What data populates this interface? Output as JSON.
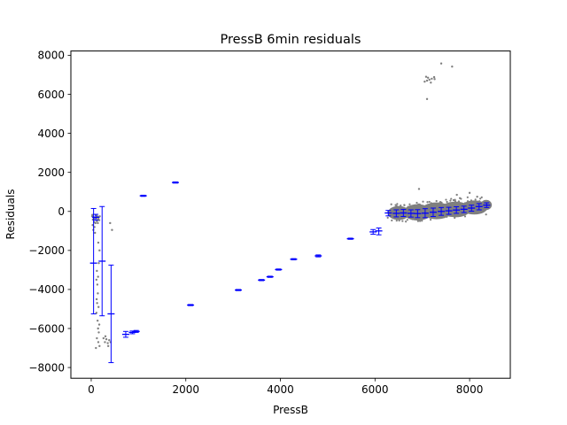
{
  "chart_data": {
    "type": "scatter",
    "title": "PressB 6min residuals",
    "xlabel": "PressB",
    "ylabel": "Residuals",
    "xlim": [
      -430,
      8860
    ],
    "ylim": [
      -8550,
      8220
    ],
    "xticks": [
      0,
      2000,
      4000,
      6000,
      8000
    ],
    "xtick_labels": [
      "0",
      "2000",
      "4000",
      "6000",
      "8000"
    ],
    "yticks": [
      -8000,
      -6000,
      -4000,
      -2000,
      0,
      2000,
      4000,
      6000,
      8000
    ],
    "ytick_labels": [
      "−8000",
      "−6000",
      "−4000",
      "−2000",
      "0",
      "2000",
      "4000",
      "6000",
      "8000"
    ],
    "grid": false,
    "colors": {
      "scatter": "#808080",
      "errorbar": "#0000ff",
      "cloud": "#7f7f7f"
    },
    "scatter_points": [
      [
        20,
        -250
      ],
      [
        35,
        -420
      ],
      [
        50,
        -300
      ],
      [
        60,
        -550
      ],
      [
        70,
        -800
      ],
      [
        45,
        -950
      ],
      [
        80,
        -1100
      ],
      [
        30,
        -700
      ],
      [
        90,
        -600
      ],
      [
        55,
        -380
      ],
      [
        130,
        -250
      ],
      [
        150,
        -400
      ],
      [
        110,
        -350
      ],
      [
        160,
        -300
      ],
      [
        140,
        -600
      ],
      [
        120,
        -500
      ],
      [
        170,
        -450
      ],
      [
        100,
        -200
      ],
      [
        25,
        -180
      ],
      [
        65,
        -330
      ],
      [
        150,
        -1600
      ],
      [
        175,
        -2000
      ],
      [
        160,
        -2650
      ],
      [
        120,
        -3050
      ],
      [
        145,
        -3350
      ],
      [
        110,
        -3500
      ],
      [
        130,
        -3750
      ],
      [
        140,
        -4200
      ],
      [
        115,
        -4500
      ],
      [
        125,
        -4700
      ],
      [
        155,
        -4900
      ],
      [
        110,
        -5200
      ],
      [
        135,
        -5600
      ],
      [
        170,
        -5800
      ],
      [
        145,
        -6000
      ],
      [
        160,
        -6200
      ],
      [
        120,
        -6500
      ],
      [
        150,
        -6700
      ],
      [
        175,
        -6900
      ],
      [
        100,
        -7000
      ],
      [
        260,
        -6500
      ],
      [
        290,
        -6700
      ],
      [
        320,
        -6550
      ],
      [
        350,
        -6750
      ],
      [
        380,
        -6600
      ],
      [
        410,
        -6700
      ],
      [
        360,
        -6900
      ],
      [
        300,
        -6400
      ],
      [
        440,
        -950
      ],
      [
        400,
        -600
      ],
      [
        180,
        -250
      ],
      [
        7050,
        6650
      ],
      [
        7100,
        6700
      ],
      [
        7150,
        6750
      ],
      [
        7200,
        6800
      ],
      [
        7250,
        6880
      ],
      [
        7120,
        6850
      ],
      [
        7180,
        6600
      ],
      [
        7260,
        6780
      ],
      [
        7080,
        6900
      ],
      [
        7100,
        5760
      ],
      [
        7400,
        7580
      ],
      [
        7630,
        7420
      ],
      [
        6930,
        1150
      ],
      [
        8000,
        950
      ],
      [
        7730,
        850
      ],
      [
        8160,
        750
      ]
    ],
    "cloud_ellipses": [
      {
        "cx": 6500,
        "cy": -80,
        "rx": 230,
        "ry": 360
      },
      {
        "cx": 6900,
        "cy": -50,
        "rx": 300,
        "ry": 420
      },
      {
        "cx": 7300,
        "cy": 30,
        "rx": 330,
        "ry": 430
      },
      {
        "cx": 7700,
        "cy": 100,
        "rx": 320,
        "ry": 400
      },
      {
        "cx": 8100,
        "cy": 200,
        "rx": 280,
        "ry": 360
      },
      {
        "cx": 8350,
        "cy": 330,
        "rx": 120,
        "ry": 260
      }
    ],
    "errorbars": [
      {
        "x": 50,
        "y": -2650,
        "ylo": -5250,
        "yhi": 150
      },
      {
        "x": 95,
        "y": -300,
        "ylo": -450,
        "yhi": -150
      },
      {
        "x": 230,
        "y": -2550,
        "ylo": -5350,
        "yhi": 250
      },
      {
        "x": 420,
        "y": -5250,
        "ylo": -7750,
        "yhi": -2750
      },
      {
        "x": 730,
        "y": -6300,
        "ylo": -6450,
        "yhi": -6150
      },
      {
        "x": 870,
        "y": -6200,
        "ylo": -6270,
        "yhi": -6130
      },
      {
        "x": 950,
        "y": -6150,
        "ylo": -6200,
        "yhi": -6100
      },
      {
        "x": 1100,
        "y": 800,
        "ylo": 770,
        "yhi": 830
      },
      {
        "x": 1780,
        "y": 1480,
        "ylo": 1450,
        "yhi": 1510
      },
      {
        "x": 2100,
        "y": -4800,
        "ylo": -4830,
        "yhi": -4770
      },
      {
        "x": 3110,
        "y": -4030,
        "ylo": -4060,
        "yhi": -4000
      },
      {
        "x": 3600,
        "y": -3520,
        "ylo": -3550,
        "yhi": -3490
      },
      {
        "x": 3780,
        "y": -3350,
        "ylo": -3380,
        "yhi": -3320
      },
      {
        "x": 3960,
        "y": -2980,
        "ylo": -3010,
        "yhi": -2950
      },
      {
        "x": 4280,
        "y": -2450,
        "ylo": -2480,
        "yhi": -2420
      },
      {
        "x": 4800,
        "y": -2280,
        "ylo": -2330,
        "yhi": -2230
      },
      {
        "x": 5480,
        "y": -1400,
        "ylo": -1430,
        "yhi": -1370
      },
      {
        "x": 5960,
        "y": -1050,
        "ylo": -1170,
        "yhi": -930
      },
      {
        "x": 6080,
        "y": -1000,
        "ylo": -1200,
        "yhi": -850
      },
      {
        "x": 6280,
        "y": -80,
        "ylo": -230,
        "yhi": 50
      },
      {
        "x": 6450,
        "y": -100,
        "ylo": -280,
        "yhi": 80
      },
      {
        "x": 6600,
        "y": -80,
        "ylo": -260,
        "yhi": 100
      },
      {
        "x": 6760,
        "y": -100,
        "ylo": -290,
        "yhi": 80
      },
      {
        "x": 6900,
        "y": -110,
        "ylo": -320,
        "yhi": 90
      },
      {
        "x": 7060,
        "y": -90,
        "ylo": -320,
        "yhi": 140
      },
      {
        "x": 7230,
        "y": -40,
        "ylo": -260,
        "yhi": 170
      },
      {
        "x": 7400,
        "y": 0,
        "ylo": -200,
        "yhi": 200
      },
      {
        "x": 7560,
        "y": 30,
        "ylo": -150,
        "yhi": 210
      },
      {
        "x": 7720,
        "y": 70,
        "ylo": -100,
        "yhi": 240
      },
      {
        "x": 7880,
        "y": 110,
        "ylo": -60,
        "yhi": 270
      },
      {
        "x": 8040,
        "y": 170,
        "ylo": 10,
        "yhi": 320
      },
      {
        "x": 8200,
        "y": 250,
        "ylo": 80,
        "yhi": 400
      },
      {
        "x": 8360,
        "y": 320,
        "ylo": 200,
        "yhi": 440
      }
    ]
  }
}
